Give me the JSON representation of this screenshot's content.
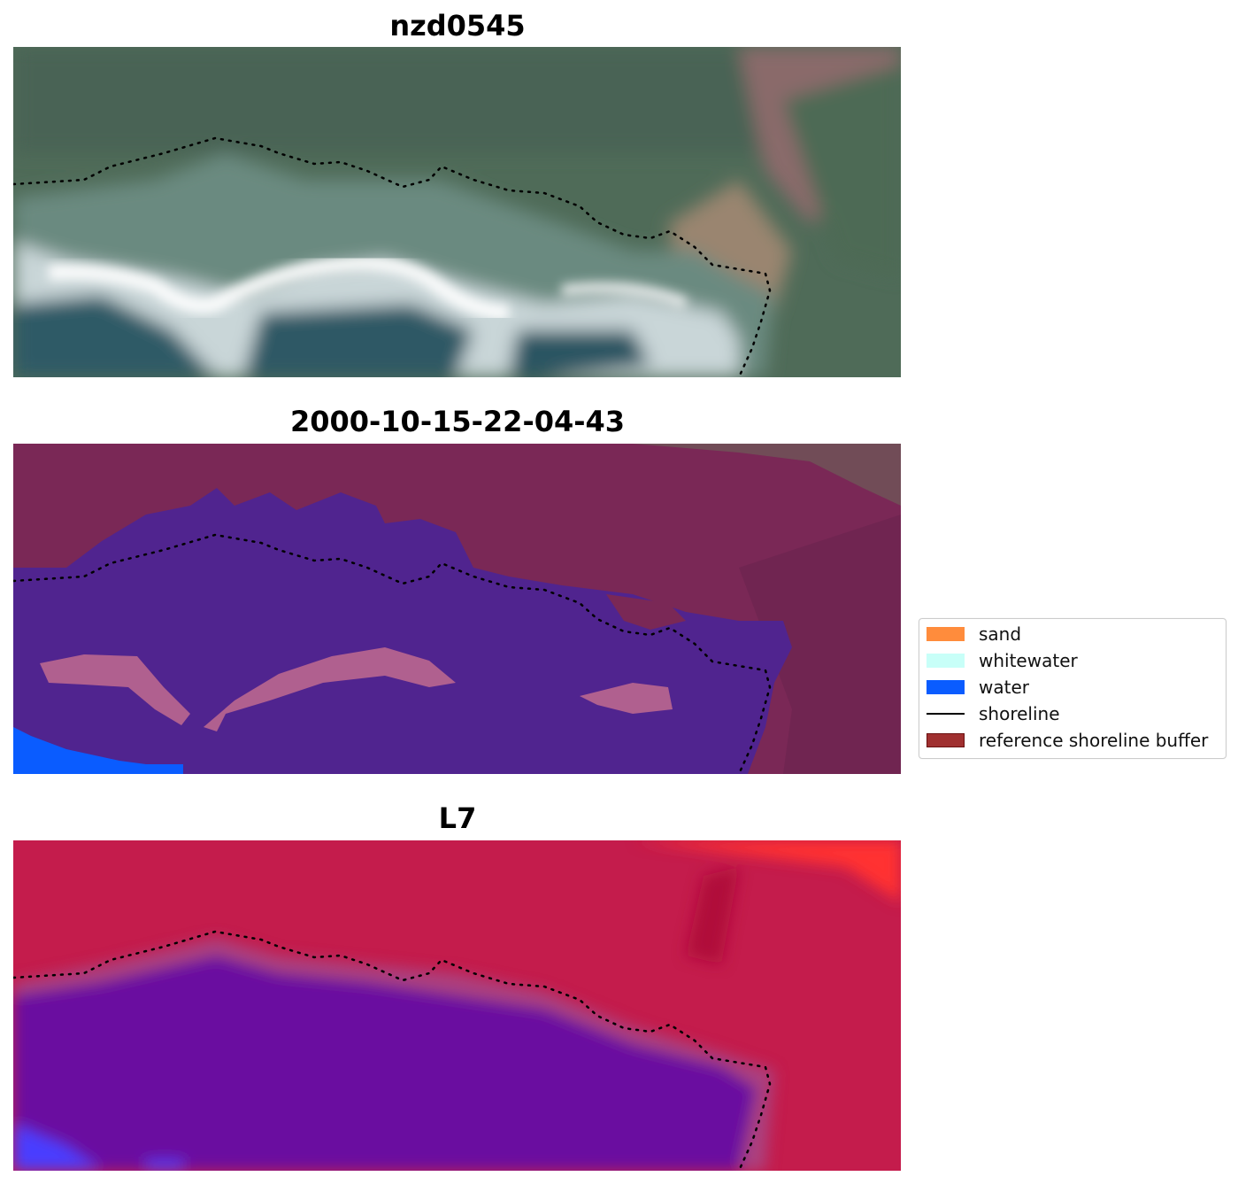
{
  "panels": [
    {
      "title": "nzd0545",
      "kind": "rgb"
    },
    {
      "title": "2000-10-15-22-04-43",
      "kind": "classified"
    },
    {
      "title": "L7",
      "kind": "index"
    }
  ],
  "legend": {
    "items": [
      {
        "label": "sand",
        "color": "#ff8c3c",
        "type": "patch"
      },
      {
        "label": "whitewater",
        "color": "#c8fff8",
        "type": "patch"
      },
      {
        "label": "water",
        "color": "#0a5cff",
        "type": "patch"
      },
      {
        "label": "shoreline",
        "color": "#000000",
        "type": "line"
      },
      {
        "label": "reference shoreline buffer",
        "color": "#a03030",
        "type": "patch"
      }
    ]
  },
  "colors": {
    "rgb_vegetation": "#4d6a57",
    "rgb_beach": "#d8e4e6",
    "rgb_sea": "#2f5a66",
    "class_sand_overlay": "#7a2a56",
    "class_water_overlay": "#50248f",
    "class_water": "#0a5cff",
    "index_land": "#c8184a",
    "index_water": "#6a0aa0",
    "buffer_strip": "#c0609a"
  }
}
